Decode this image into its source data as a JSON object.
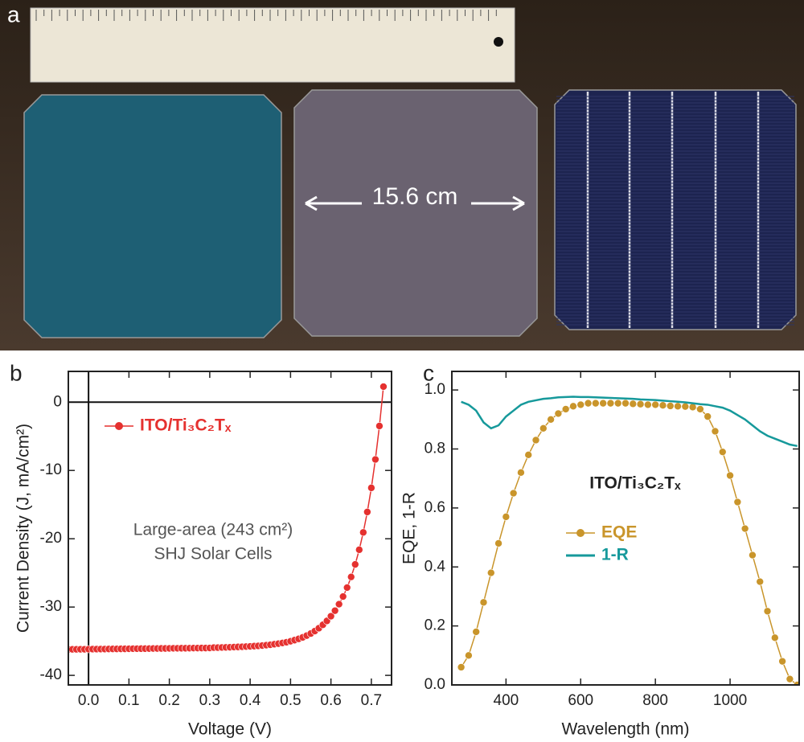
{
  "panels": [
    "a",
    "b",
    "c"
  ],
  "photo": {
    "annotation": "15.6 cm"
  },
  "chart_data": [
    {
      "type": "line",
      "xlabel": "Voltage (V)",
      "ylabel": "Current Density (J, mA/cm²)",
      "annotations": [
        "Large-area (243 cm²)",
        "SHJ Solar Cells"
      ],
      "xlim": [
        -0.05,
        0.75
      ],
      "ylim": [
        -41.4,
        4.5
      ],
      "xticks": [
        {
          "value": 0,
          "label": "0.0"
        },
        0.1,
        0.2,
        0.3,
        0.4,
        0.5,
        0.6,
        0.7
      ],
      "yticks": [
        -40,
        -30,
        -20,
        -10,
        0
      ],
      "zero_lines": true,
      "legend": "upper left",
      "x": [
        -0.05,
        -0.04,
        -0.03,
        -0.02,
        -0.01,
        0,
        0.01,
        0.02,
        0.03,
        0.04,
        0.05,
        0.06,
        0.07,
        0.08,
        0.09,
        0.1,
        0.11,
        0.12,
        0.13,
        0.14,
        0.15,
        0.16,
        0.17,
        0.18,
        0.19,
        0.2,
        0.21,
        0.22,
        0.23,
        0.24,
        0.25,
        0.26,
        0.27,
        0.28,
        0.29,
        0.3,
        0.31,
        0.32,
        0.33,
        0.34,
        0.35,
        0.36,
        0.37,
        0.38,
        0.39,
        0.4,
        0.41,
        0.42,
        0.43,
        0.44,
        0.45,
        0.46,
        0.47,
        0.48,
        0.49,
        0.5,
        0.51,
        0.52,
        0.53,
        0.54,
        0.55,
        0.56,
        0.57,
        0.58,
        0.59,
        0.6,
        0.61,
        0.62,
        0.63,
        0.64,
        0.65,
        0.66,
        0.67,
        0.68,
        0.69,
        0.7,
        0.71,
        0.72,
        0.73
      ],
      "series": [
        {
          "name": "ITO/Ti₃C₂Tₓ",
          "color": "#e5312f",
          "marker": true,
          "values": [
            -36.2,
            -36.19,
            -36.19,
            -36.18,
            -36.18,
            -36.17,
            -36.16,
            -36.16,
            -36.15,
            -36.15,
            -36.14,
            -36.13,
            -36.13,
            -36.12,
            -36.12,
            -36.11,
            -36.1,
            -36.1,
            -36.09,
            -36.09,
            -36.08,
            -36.07,
            -36.07,
            -36.06,
            -36.06,
            -36.05,
            -36.04,
            -36.04,
            -36.03,
            -36.03,
            -36.02,
            -36.01,
            -36.01,
            -36.0,
            -36.0,
            -35.99,
            -35.94,
            -35.94,
            -35.92,
            -35.9,
            -35.89,
            -35.86,
            -35.84,
            -35.82,
            -35.79,
            -35.76,
            -35.72,
            -35.69,
            -35.64,
            -35.58,
            -35.52,
            -35.44,
            -35.36,
            -35.26,
            -35.15,
            -35.01,
            -34.84,
            -34.66,
            -34.44,
            -34.18,
            -33.88,
            -33.52,
            -33.1,
            -32.6,
            -32.03,
            -31.34,
            -30.53,
            -29.58,
            -28.46,
            -27.15,
            -25.59,
            -23.76,
            -21.61,
            -19.07,
            -16.08,
            -12.55,
            -8.39,
            -3.49,
            2.27
          ]
        }
      ]
    },
    {
      "type": "line",
      "xlabel": "Wavelength (nm)",
      "ylabel": "EQE, 1-R",
      "annotations": [
        "ITO/Ti₃C₂Tₓ"
      ],
      "xlim": [
        255,
        1185
      ],
      "ylim": [
        0,
        1.063
      ],
      "xticks": [
        400,
        600,
        800,
        1000
      ],
      "yticks": [
        {
          "value": 0,
          "label": "0.0"
        },
        0.2,
        0.4,
        0.6,
        0.8,
        {
          "value": 1,
          "label": "1.0"
        }
      ],
      "zero_lines": false,
      "legend": "center",
      "x": [
        280,
        300,
        320,
        340,
        360,
        380,
        400,
        420,
        440,
        460,
        480,
        500,
        520,
        540,
        560,
        580,
        600,
        620,
        640,
        660,
        680,
        700,
        720,
        740,
        760,
        780,
        800,
        820,
        840,
        860,
        880,
        900,
        920,
        940,
        960,
        980,
        1000,
        1020,
        1040,
        1060,
        1080,
        1100,
        1120,
        1140,
        1160,
        1180
      ],
      "series": [
        {
          "name": "EQE",
          "color": "#c9952b",
          "marker": true,
          "values": [
            0.06,
            0.1,
            0.18,
            0.28,
            0.38,
            0.48,
            0.57,
            0.65,
            0.72,
            0.78,
            0.83,
            0.87,
            0.9,
            0.92,
            0.935,
            0.945,
            0.95,
            0.955,
            0.955,
            0.955,
            0.955,
            0.955,
            0.955,
            0.953,
            0.952,
            0.95,
            0.95,
            0.948,
            0.946,
            0.945,
            0.944,
            0.942,
            0.935,
            0.91,
            0.86,
            0.79,
            0.71,
            0.62,
            0.53,
            0.44,
            0.35,
            0.25,
            0.16,
            0.08,
            0.02,
            0.0
          ]
        },
        {
          "name": "1-R",
          "color": "#16999b",
          "marker": false,
          "values": [
            0.96,
            0.95,
            0.93,
            0.89,
            0.87,
            0.88,
            0.91,
            0.93,
            0.95,
            0.96,
            0.965,
            0.97,
            0.972,
            0.975,
            0.976,
            0.977,
            0.976,
            0.976,
            0.975,
            0.974,
            0.973,
            0.972,
            0.971,
            0.97,
            0.968,
            0.967,
            0.966,
            0.964,
            0.962,
            0.96,
            0.958,
            0.955,
            0.952,
            0.95,
            0.945,
            0.94,
            0.93,
            0.915,
            0.9,
            0.88,
            0.86,
            0.845,
            0.835,
            0.825,
            0.815,
            0.81
          ]
        }
      ]
    }
  ]
}
